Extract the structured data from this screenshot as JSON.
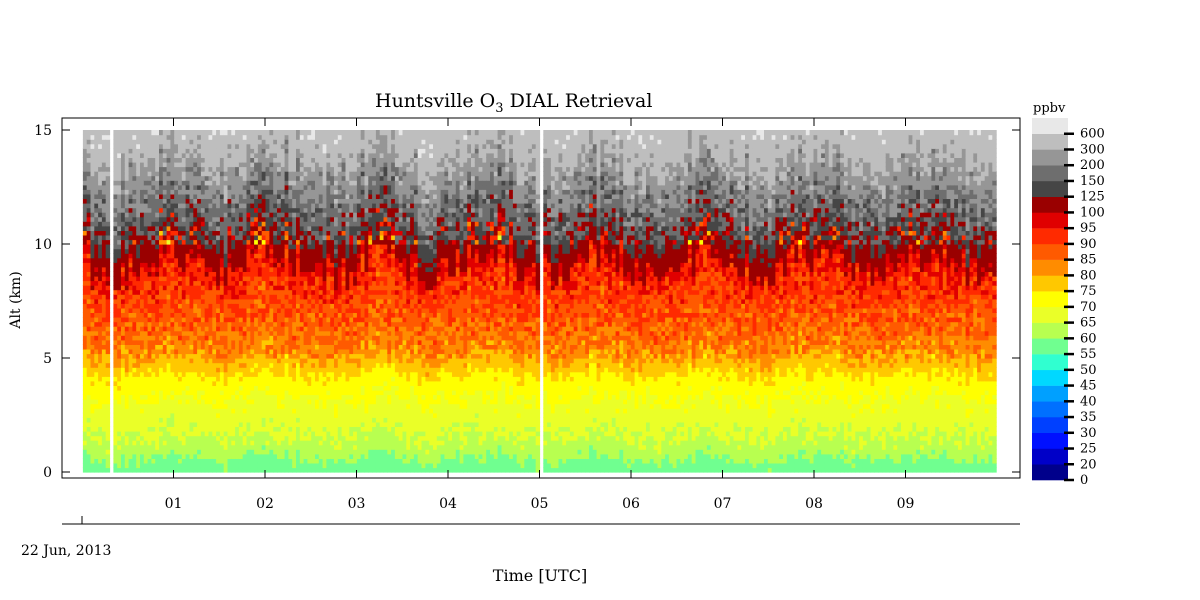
{
  "chart_data": {
    "type": "heatmap",
    "title_main": "Huntsville O",
    "title_sub": "3",
    "title_rest": " DIAL Retrieval",
    "ylabel": "Alt (km)",
    "xlabel": "Time [UTC]",
    "date_label": "22 Jun, 2013",
    "colorbar_unit": "ppbv",
    "x_range_hours": [
      0.0,
      10.0
    ],
    "ylim_km": [
      0,
      15
    ],
    "y_ticks": [
      "0",
      "5",
      "10",
      "15"
    ],
    "x_ticks": [
      "01",
      "02",
      "03",
      "04",
      "05",
      "06",
      "07",
      "08",
      "09"
    ],
    "levels": [
      0,
      20,
      25,
      30,
      35,
      40,
      45,
      50,
      55,
      60,
      65,
      70,
      75,
      80,
      85,
      90,
      95,
      100,
      125,
      150,
      200,
      300,
      600
    ],
    "level_labels": [
      "0",
      "20",
      "25",
      "30",
      "35",
      "40",
      "45",
      "50",
      "55",
      "60",
      "65",
      "70",
      "75",
      "80",
      "85",
      "90",
      "95",
      "100",
      "125",
      "150",
      "200",
      "300",
      "600"
    ],
    "colors": [
      "#00008b",
      "#0000c8",
      "#0010ff",
      "#0040ff",
      "#0070ff",
      "#00a0ff",
      "#00d8ff",
      "#30ffd0",
      "#70ff90",
      "#b8ff50",
      "#eaff28",
      "#ffff00",
      "#ffc800",
      "#ff8c00",
      "#ff5a00",
      "#ff2a00",
      "#e00000",
      "#9a0000",
      "#464646",
      "#6e6e6e",
      "#969696",
      "#bebebe",
      "#e8e8e8"
    ],
    "data_start_hour": 0.01,
    "data_end_hour": 9.99,
    "data_top_km": 15,
    "gaps_hours": [
      0.29,
      5.0
    ],
    "profile_layers_km": [
      {
        "alt": 0.25,
        "ppbv": 57
      },
      {
        "alt": 1.0,
        "ppbv": 63
      },
      {
        "alt": 2.0,
        "ppbv": 66
      },
      {
        "alt": 3.0,
        "ppbv": 69
      },
      {
        "alt": 4.0,
        "ppbv": 73
      },
      {
        "alt": 5.5,
        "ppbv": 84
      },
      {
        "alt": 7.5,
        "ppbv": 90
      },
      {
        "alt": 9.0,
        "ppbv": 95
      },
      {
        "alt": 10.5,
        "ppbv": 130
      },
      {
        "alt": 12.0,
        "ppbv": 190
      },
      {
        "alt": 13.5,
        "ppbv": 280
      },
      {
        "alt": 15.0,
        "ppbv": 500
      }
    ]
  }
}
